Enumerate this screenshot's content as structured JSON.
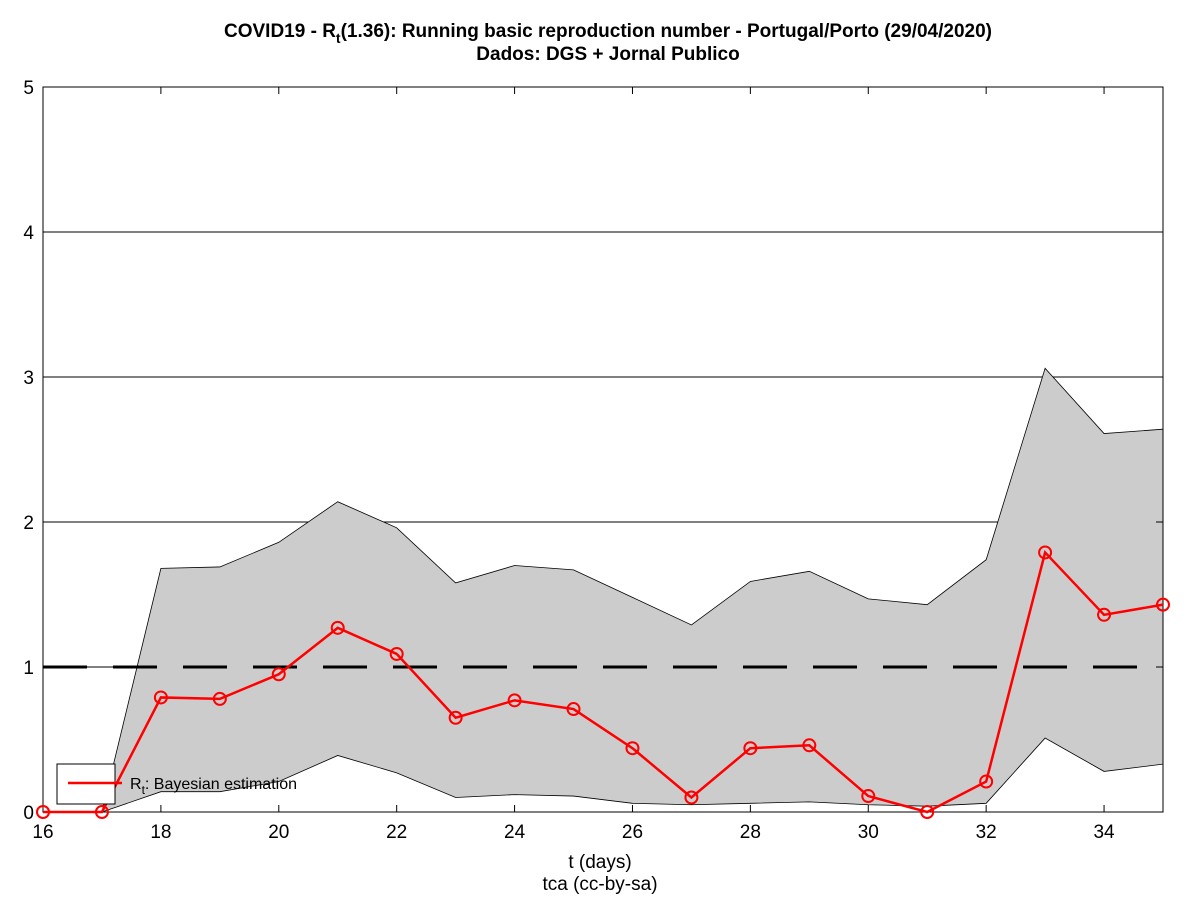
{
  "chart_data": {
    "type": "line",
    "title_prefix": "COVID19 - R",
    "title_sub": "t",
    "title_suffix": "(1.36): Running basic reproduction number - Portugal/Porto (29/04/2020)",
    "subtitle": "Dados: DGS + Jornal Publico",
    "xlabel": "t (days)",
    "credit": "tca (cc-by-sa)",
    "ylabel": "",
    "xlim": [
      16,
      35
    ],
    "ylim": [
      0,
      5
    ],
    "xticks": [
      16,
      18,
      20,
      22,
      24,
      26,
      28,
      30,
      32,
      34
    ],
    "yticks": [
      0,
      1,
      2,
      3,
      4,
      5
    ],
    "grid": "horizontal",
    "legend_placement": "bottom-left",
    "reference_line": 1,
    "series": [
      {
        "name_main": "R",
        "name_sub": "t",
        "name_suffix": ": Bayesian estimation",
        "color": "#ff0000",
        "x": [
          16,
          17,
          18,
          19,
          20,
          21,
          22,
          23,
          24,
          25,
          26,
          27,
          28,
          29,
          30,
          31,
          32,
          33,
          34,
          35
        ],
        "values": [
          0,
          0,
          0.79,
          0.78,
          0.95,
          1.27,
          1.09,
          0.65,
          0.77,
          0.71,
          0.44,
          0.1,
          0.44,
          0.46,
          0.11,
          0,
          0.21,
          1.79,
          1.36,
          1.43
        ]
      }
    ],
    "band": {
      "color": "#cccccc",
      "upper": [
        0,
        0,
        1.68,
        1.69,
        1.86,
        2.14,
        1.96,
        1.58,
        1.7,
        1.67,
        1.48,
        1.29,
        1.59,
        1.66,
        1.47,
        1.43,
        1.74,
        3.06,
        2.61,
        2.64
      ],
      "lower": [
        0,
        0,
        0.14,
        0.14,
        0.21,
        0.39,
        0.27,
        0.1,
        0.12,
        0.11,
        0.06,
        0.05,
        0.06,
        0.07,
        0.05,
        0.04,
        0.06,
        0.51,
        0.28,
        0.33
      ]
    }
  }
}
